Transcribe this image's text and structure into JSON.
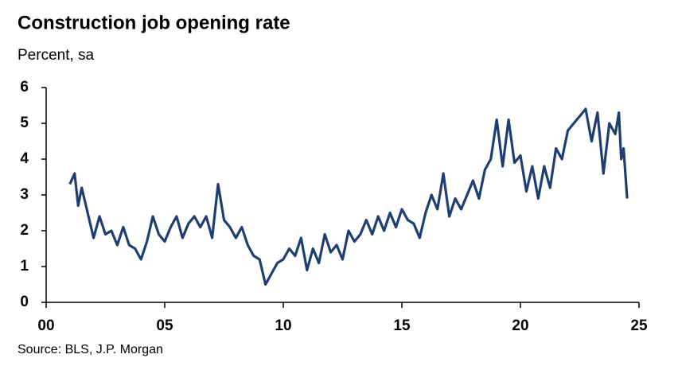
{
  "chart_data": {
    "type": "line",
    "title": "Construction job opening rate",
    "subtitle": "Percent, sa",
    "source": "Source: BLS, J.P. Morgan",
    "x": [
      2001.0,
      2001.2,
      2001.35,
      2001.5,
      2001.75,
      2002.0,
      2002.25,
      2002.5,
      2002.75,
      2003.0,
      2003.25,
      2003.5,
      2003.75,
      2004.0,
      2004.25,
      2004.5,
      2004.75,
      2005.0,
      2005.25,
      2005.5,
      2005.75,
      2006.0,
      2006.25,
      2006.5,
      2006.75,
      2007.0,
      2007.25,
      2007.5,
      2007.75,
      2008.0,
      2008.25,
      2008.5,
      2008.75,
      2009.0,
      2009.25,
      2009.5,
      2009.75,
      2010.0,
      2010.25,
      2010.5,
      2010.75,
      2011.0,
      2011.25,
      2011.5,
      2011.75,
      2012.0,
      2012.25,
      2012.5,
      2012.75,
      2013.0,
      2013.25,
      2013.5,
      2013.75,
      2014.0,
      2014.25,
      2014.5,
      2014.75,
      2015.0,
      2015.25,
      2015.5,
      2015.75,
      2016.0,
      2016.25,
      2016.5,
      2016.75,
      2017.0,
      2017.25,
      2017.5,
      2017.75,
      2018.0,
      2018.25,
      2018.5,
      2018.75,
      2019.0,
      2019.25,
      2019.5,
      2019.75,
      2020.0,
      2020.25,
      2020.5,
      2020.75,
      2021.0,
      2021.25,
      2021.5,
      2021.75,
      2022.0,
      2022.25,
      2022.5,
      2022.75,
      2023.0,
      2023.25,
      2023.5,
      2023.75,
      2024.0,
      2024.15,
      2024.25,
      2024.35,
      2024.5
    ],
    "series": [
      {
        "name": "Construction job opening rate",
        "color": "#1f3f73",
        "values": [
          3.3,
          3.6,
          2.7,
          3.2,
          2.5,
          1.8,
          2.4,
          1.9,
          2.0,
          1.6,
          2.1,
          1.6,
          1.5,
          1.2,
          1.7,
          2.4,
          1.9,
          1.7,
          2.1,
          2.4,
          1.8,
          2.2,
          2.4,
          2.1,
          2.4,
          1.8,
          3.3,
          2.3,
          2.1,
          1.8,
          2.1,
          1.6,
          1.3,
          1.2,
          0.5,
          0.8,
          1.1,
          1.2,
          1.5,
          1.3,
          1.8,
          0.9,
          1.5,
          1.1,
          1.9,
          1.4,
          1.6,
          1.2,
          2.0,
          1.7,
          1.9,
          2.3,
          1.9,
          2.4,
          2.0,
          2.5,
          2.1,
          2.6,
          2.3,
          2.2,
          1.8,
          2.5,
          3.0,
          2.6,
          3.6,
          2.4,
          2.9,
          2.6,
          3.0,
          3.4,
          2.9,
          3.7,
          4.0,
          5.1,
          3.8,
          5.1,
          3.9,
          4.1,
          3.1,
          3.8,
          2.9,
          3.8,
          3.2,
          4.3,
          4.0,
          4.8,
          5.0,
          5.2,
          5.4,
          4.5,
          5.3,
          3.6,
          5.0,
          4.7,
          5.3,
          4.0,
          4.3,
          2.9
        ]
      }
    ],
    "xlim": [
      2000,
      2025
    ],
    "xticks": [
      {
        "value": 2000,
        "label": "00"
      },
      {
        "value": 2005,
        "label": "05"
      },
      {
        "value": 2010,
        "label": "10"
      },
      {
        "value": 2015,
        "label": "15"
      },
      {
        "value": 2020,
        "label": "20"
      },
      {
        "value": 2025,
        "label": "25"
      }
    ],
    "ylim": [
      0,
      6
    ],
    "yticks": [
      0,
      1,
      2,
      3,
      4,
      5,
      6
    ],
    "grid": false
  }
}
